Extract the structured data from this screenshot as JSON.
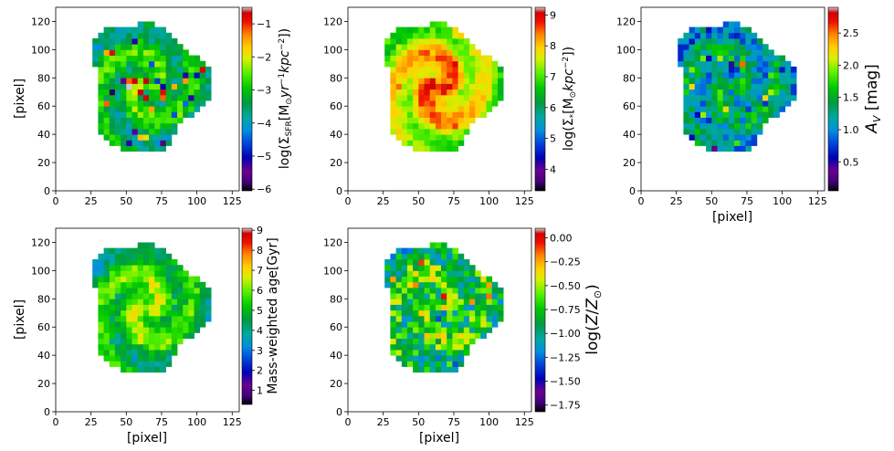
{
  "chart_data": [
    {
      "type": "heatmap",
      "name": "sfr",
      "xlabel": "",
      "ylabel": "[pixel]",
      "xlim": [
        0,
        130
      ],
      "ylim": [
        0,
        130
      ],
      "xticks": [
        "0",
        "25",
        "50",
        "75",
        "100",
        "125"
      ],
      "yticks": [
        "0",
        "20",
        "40",
        "60",
        "80",
        "100",
        "120"
      ],
      "colorbar": {
        "label": "log(ΣSFR[M⊙yr⁻¹kpc⁻²])",
        "range": [
          -6.05,
          -0.5
        ],
        "ticks": [
          "-6",
          "-5",
          "-4",
          "-3",
          "-2",
          "-1"
        ],
        "tick_values": [
          -6,
          -5,
          -4,
          -3,
          -2,
          -1
        ]
      },
      "field": {
        "center": 0.58,
        "spot": 0.38,
        "edge": 0.5,
        "noise": 0.16,
        "seed": 11
      }
    },
    {
      "type": "heatmap",
      "name": "mass",
      "xlabel": "",
      "ylabel": "",
      "xlim": [
        0,
        130
      ],
      "ylim": [
        0,
        130
      ],
      "xticks": [
        "0",
        "25",
        "50",
        "75",
        "100",
        "125"
      ],
      "yticks": [
        "0",
        "20",
        "40",
        "60",
        "80",
        "100",
        "120"
      ],
      "colorbar": {
        "label": "log(Σ*[M⊙kpc⁻²])",
        "range": [
          3.3,
          9.25
        ],
        "ticks": [
          "4",
          "5",
          "6",
          "7",
          "8",
          "9"
        ],
        "tick_values": [
          4,
          5,
          6,
          7,
          8,
          9
        ]
      },
      "field": {
        "center": 0.92,
        "spot": 0.08,
        "edge": 0.52,
        "noise": 0.08,
        "seed": 23
      }
    },
    {
      "type": "heatmap",
      "name": "av",
      "xlabel": "[pixel]",
      "ylabel": "",
      "xlim": [
        0,
        130
      ],
      "ylim": [
        0,
        130
      ],
      "xticks": [
        "0",
        "25",
        "50",
        "75",
        "100",
        "125"
      ],
      "yticks": [
        "0",
        "20",
        "40",
        "60",
        "80",
        "100",
        "120"
      ],
      "colorbar": {
        "label": "AV [mag]",
        "range": [
          0.05,
          2.9
        ],
        "ticks": [
          "0.5",
          "1.0",
          "1.5",
          "2.0",
          "2.5"
        ],
        "tick_values": [
          0.5,
          1.0,
          1.5,
          2.0,
          2.5
        ]
      },
      "field": {
        "center": 0.45,
        "spot": 0.25,
        "edge": 0.42,
        "noise": 0.22,
        "seed": 37
      }
    },
    {
      "type": "heatmap",
      "name": "age",
      "xlabel": "[pixel]",
      "ylabel": "[pixel]",
      "xlim": [
        0,
        130
      ],
      "ylim": [
        0,
        130
      ],
      "xticks": [
        "0",
        "25",
        "50",
        "75",
        "100",
        "125"
      ],
      "yticks": [
        "0",
        "20",
        "40",
        "60",
        "80",
        "100",
        "120"
      ],
      "colorbar": {
        "label": "Mass-weighted age[Gyr]",
        "range": [
          0.3,
          9.1
        ],
        "ticks": [
          "1",
          "2",
          "3",
          "4",
          "5",
          "6",
          "7",
          "8",
          "9"
        ],
        "tick_values": [
          1,
          2,
          3,
          4,
          5,
          6,
          7,
          8,
          9
        ]
      },
      "field": {
        "center": 0.7,
        "spot": 0.05,
        "edge": 0.4,
        "noise": 0.14,
        "seed": 41
      }
    },
    {
      "type": "heatmap",
      "name": "metal",
      "xlabel": "[pixel]",
      "ylabel": "",
      "xlim": [
        0,
        130
      ],
      "ylim": [
        0,
        130
      ],
      "xticks": [
        "0",
        "25",
        "50",
        "75",
        "100",
        "125"
      ],
      "yticks": [
        "0",
        "20",
        "40",
        "60",
        "80",
        "100",
        "120"
      ],
      "colorbar": {
        "label": "log(Z/Z⊙)",
        "range": [
          -1.82,
          0.1
        ],
        "ticks": [
          "0.00",
          "-0.25",
          "-0.50",
          "-0.75",
          "-1.00",
          "-1.25",
          "-1.50",
          "-1.75"
        ],
        "tick_values": [
          0,
          -0.25,
          -0.5,
          -0.75,
          -1.0,
          -1.25,
          -1.5,
          -1.75
        ]
      },
      "field": {
        "center": 0.6,
        "spot": 0.2,
        "edge": 0.55,
        "noise": 0.34,
        "seed": 53
      }
    }
  ]
}
